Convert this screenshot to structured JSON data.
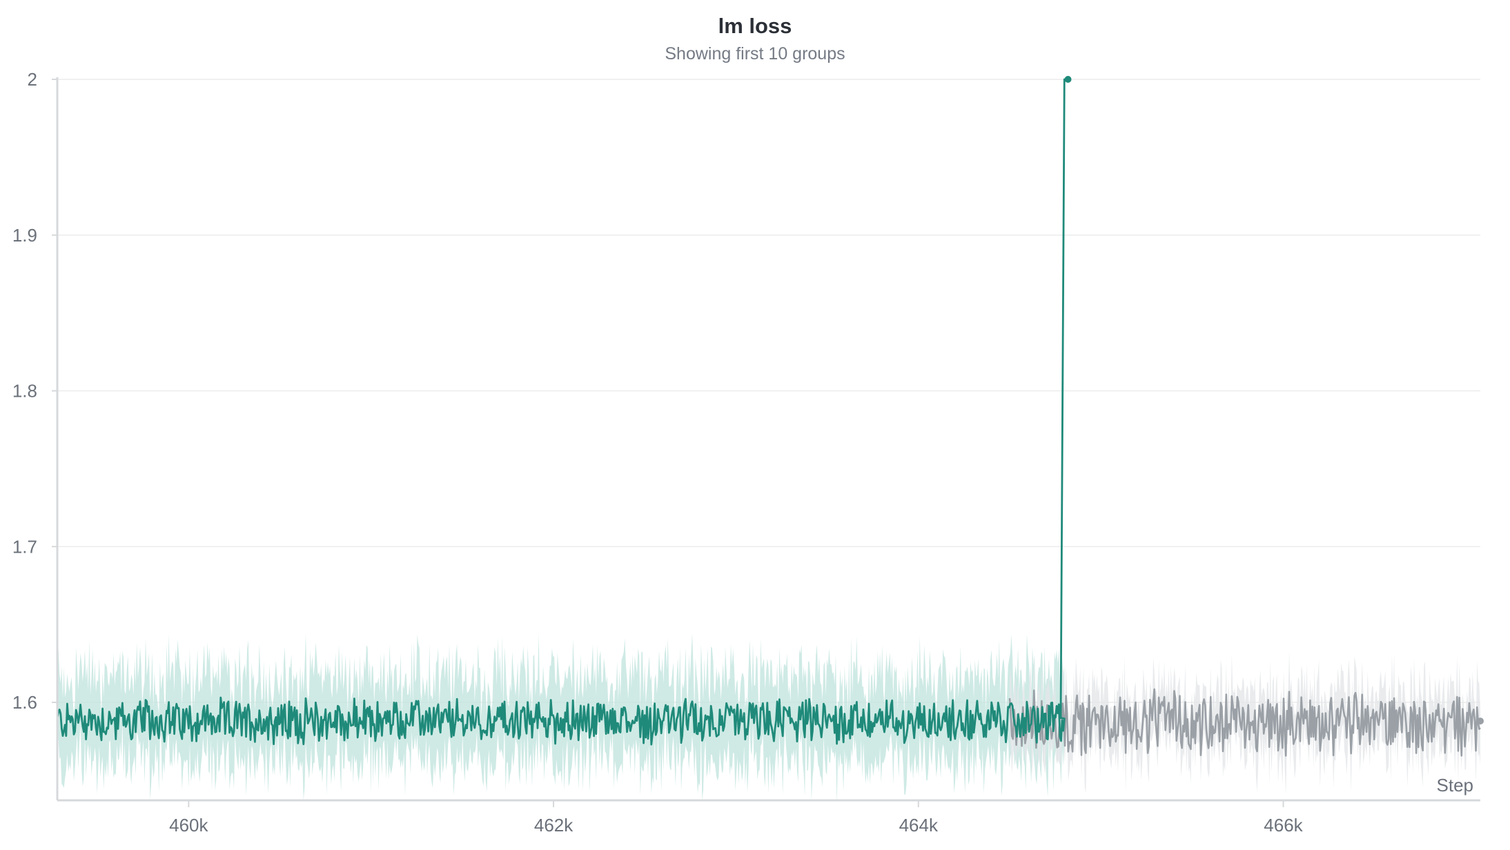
{
  "chart_data": {
    "type": "line",
    "title": "lm loss",
    "subtitle": "Showing first 10 groups",
    "xlabel": "Step",
    "ylabel": "",
    "xlim": [
      459280,
      467080
    ],
    "ylim": [
      1.56,
      2.0
    ],
    "x_ticks": [
      460000,
      462000,
      464000,
      466000
    ],
    "x_tick_labels": [
      "460k",
      "462k",
      "464k",
      "466k"
    ],
    "y_ticks": [
      1.6,
      1.7,
      1.8,
      1.9,
      2.0
    ],
    "y_tick_labels": [
      "1.6",
      "1.7",
      "1.8",
      "1.9",
      "2"
    ],
    "grid": true,
    "series": [
      {
        "color": "#1f8a7a",
        "band_color": "#bfe3dc",
        "x_start": 459280,
        "x_end": 464800,
        "baseline": 1.588,
        "noise_amplitude": 0.012,
        "band_spread": 0.03,
        "spike": {
          "x": [
            464780,
            464800,
            464820
          ],
          "y": [
            1.59,
            2.0,
            2.0
          ]
        }
      },
      {
        "color": "#9aa0a6",
        "band_color": "#e4e6e8",
        "x_start": 464500,
        "x_end": 467080,
        "baseline": 1.587,
        "noise_amplitude": 0.017,
        "band_spread": 0.02,
        "end_marker": {
          "x": 467080,
          "y": 1.588
        }
      }
    ]
  }
}
